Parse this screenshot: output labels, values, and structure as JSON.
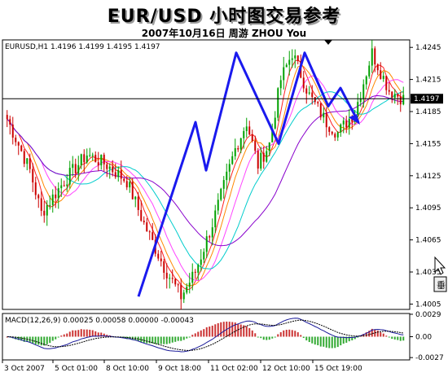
{
  "header": {
    "title": "EUR/USD 小时图交易参考",
    "subtitle": "2007年10月16日   周游 ZHOU You"
  },
  "colors": {
    "candle_up": "#00a000",
    "candle_down": "#cc0000",
    "trend_arrow": "#1a1aee",
    "ma_red": "#ff2222",
    "ma_orange": "#ff8800",
    "ma_magenta": "#ff44ff",
    "ma_purple": "#8800cc",
    "ma_cyan": "#00cccc",
    "macd_line": "#1a1a99",
    "signal_line": "#000000",
    "hist_pos": "#cc3333",
    "hist_neg": "#33aa33"
  },
  "chart_data": {
    "type": "candlestick",
    "symbol_info": "EURUSD,H1  1.4196 1.4199 1.4195 1.4197",
    "price_axis": {
      "range": [
        1.4,
        1.4252
      ],
      "ticks": [
        "1.4245",
        "1.4215",
        "1.4185",
        "1.4155",
        "1.4125",
        "1.4095",
        "1.4065",
        "1.4035",
        "1.4005"
      ]
    },
    "current_price": "1.4197",
    "current_price_value": 1.4197,
    "time_ticks": [
      "3 Oct 2007",
      "5 Oct 01:00",
      "8 Oct 10:00",
      "9 Oct 18:00",
      "11 Oct 02:00",
      "12 Oct 10:00",
      "15 Oct 19:00"
    ],
    "trend_path_prices": [
      1.4012,
      1.4175,
      1.413,
      1.424,
      1.4155,
      1.424,
      1.419,
      1.4207,
      1.4175
    ],
    "trend_arrow_tip_price": 1.4175,
    "macd": {
      "info": "MACD(12,26,9) 0.00025 0.00058 0.00000 -0.00043",
      "range": [
        -0.003,
        0.003
      ],
      "ticks": [
        "0.0029",
        "0.00",
        "-0.0027"
      ],
      "tick_values": [
        0.0029,
        0.0,
        -0.0027
      ]
    }
  }
}
